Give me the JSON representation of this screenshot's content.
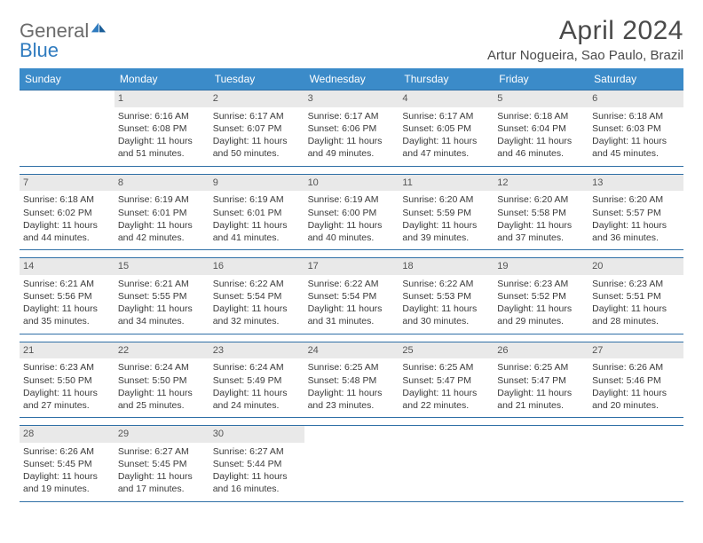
{
  "brand": {
    "general": "General",
    "blue": "Blue"
  },
  "title": "April 2024",
  "location": "Artur Nogueira, Sao Paulo, Brazil",
  "colors": {
    "header_bg": "#3b8bc9",
    "header_text": "#ffffff",
    "row_border": "#2f6fa6",
    "daynum_bg": "#e9e9e9",
    "body_text": "#3a3a3a",
    "title_text": "#4a4a4a",
    "logo_gray": "#6b6b6b",
    "logo_blue": "#2f7bbf"
  },
  "dow": [
    "Sunday",
    "Monday",
    "Tuesday",
    "Wednesday",
    "Thursday",
    "Friday",
    "Saturday"
  ],
  "weeks": [
    [
      {
        "n": "",
        "sunrise": "",
        "sunset": "",
        "daylight": ""
      },
      {
        "n": "1",
        "sunrise": "6:16 AM",
        "sunset": "6:08 PM",
        "daylight": "11 hours and 51 minutes."
      },
      {
        "n": "2",
        "sunrise": "6:17 AM",
        "sunset": "6:07 PM",
        "daylight": "11 hours and 50 minutes."
      },
      {
        "n": "3",
        "sunrise": "6:17 AM",
        "sunset": "6:06 PM",
        "daylight": "11 hours and 49 minutes."
      },
      {
        "n": "4",
        "sunrise": "6:17 AM",
        "sunset": "6:05 PM",
        "daylight": "11 hours and 47 minutes."
      },
      {
        "n": "5",
        "sunrise": "6:18 AM",
        "sunset": "6:04 PM",
        "daylight": "11 hours and 46 minutes."
      },
      {
        "n": "6",
        "sunrise": "6:18 AM",
        "sunset": "6:03 PM",
        "daylight": "11 hours and 45 minutes."
      }
    ],
    [
      {
        "n": "7",
        "sunrise": "6:18 AM",
        "sunset": "6:02 PM",
        "daylight": "11 hours and 44 minutes."
      },
      {
        "n": "8",
        "sunrise": "6:19 AM",
        "sunset": "6:01 PM",
        "daylight": "11 hours and 42 minutes."
      },
      {
        "n": "9",
        "sunrise": "6:19 AM",
        "sunset": "6:01 PM",
        "daylight": "11 hours and 41 minutes."
      },
      {
        "n": "10",
        "sunrise": "6:19 AM",
        "sunset": "6:00 PM",
        "daylight": "11 hours and 40 minutes."
      },
      {
        "n": "11",
        "sunrise": "6:20 AM",
        "sunset": "5:59 PM",
        "daylight": "11 hours and 39 minutes."
      },
      {
        "n": "12",
        "sunrise": "6:20 AM",
        "sunset": "5:58 PM",
        "daylight": "11 hours and 37 minutes."
      },
      {
        "n": "13",
        "sunrise": "6:20 AM",
        "sunset": "5:57 PM",
        "daylight": "11 hours and 36 minutes."
      }
    ],
    [
      {
        "n": "14",
        "sunrise": "6:21 AM",
        "sunset": "5:56 PM",
        "daylight": "11 hours and 35 minutes."
      },
      {
        "n": "15",
        "sunrise": "6:21 AM",
        "sunset": "5:55 PM",
        "daylight": "11 hours and 34 minutes."
      },
      {
        "n": "16",
        "sunrise": "6:22 AM",
        "sunset": "5:54 PM",
        "daylight": "11 hours and 32 minutes."
      },
      {
        "n": "17",
        "sunrise": "6:22 AM",
        "sunset": "5:54 PM",
        "daylight": "11 hours and 31 minutes."
      },
      {
        "n": "18",
        "sunrise": "6:22 AM",
        "sunset": "5:53 PM",
        "daylight": "11 hours and 30 minutes."
      },
      {
        "n": "19",
        "sunrise": "6:23 AM",
        "sunset": "5:52 PM",
        "daylight": "11 hours and 29 minutes."
      },
      {
        "n": "20",
        "sunrise": "6:23 AM",
        "sunset": "5:51 PM",
        "daylight": "11 hours and 28 minutes."
      }
    ],
    [
      {
        "n": "21",
        "sunrise": "6:23 AM",
        "sunset": "5:50 PM",
        "daylight": "11 hours and 27 minutes."
      },
      {
        "n": "22",
        "sunrise": "6:24 AM",
        "sunset": "5:50 PM",
        "daylight": "11 hours and 25 minutes."
      },
      {
        "n": "23",
        "sunrise": "6:24 AM",
        "sunset": "5:49 PM",
        "daylight": "11 hours and 24 minutes."
      },
      {
        "n": "24",
        "sunrise": "6:25 AM",
        "sunset": "5:48 PM",
        "daylight": "11 hours and 23 minutes."
      },
      {
        "n": "25",
        "sunrise": "6:25 AM",
        "sunset": "5:47 PM",
        "daylight": "11 hours and 22 minutes."
      },
      {
        "n": "26",
        "sunrise": "6:25 AM",
        "sunset": "5:47 PM",
        "daylight": "11 hours and 21 minutes."
      },
      {
        "n": "27",
        "sunrise": "6:26 AM",
        "sunset": "5:46 PM",
        "daylight": "11 hours and 20 minutes."
      }
    ],
    [
      {
        "n": "28",
        "sunrise": "6:26 AM",
        "sunset": "5:45 PM",
        "daylight": "11 hours and 19 minutes."
      },
      {
        "n": "29",
        "sunrise": "6:27 AM",
        "sunset": "5:45 PM",
        "daylight": "11 hours and 17 minutes."
      },
      {
        "n": "30",
        "sunrise": "6:27 AM",
        "sunset": "5:44 PM",
        "daylight": "11 hours and 16 minutes."
      },
      {
        "n": "",
        "sunrise": "",
        "sunset": "",
        "daylight": ""
      },
      {
        "n": "",
        "sunrise": "",
        "sunset": "",
        "daylight": ""
      },
      {
        "n": "",
        "sunrise": "",
        "sunset": "",
        "daylight": ""
      },
      {
        "n": "",
        "sunrise": "",
        "sunset": "",
        "daylight": ""
      }
    ]
  ],
  "labels": {
    "sunrise": "Sunrise:",
    "sunset": "Sunset:",
    "daylight": "Daylight:"
  }
}
